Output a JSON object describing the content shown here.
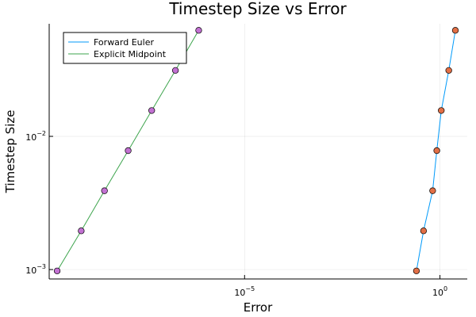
{
  "chart_data": {
    "type": "line",
    "title": "Timestep Size vs Error",
    "xlabel": "Error",
    "ylabel": "Timestep Size",
    "xscale": "log10",
    "yscale": "log10",
    "xlim": [
      1e-10,
      5.0
    ],
    "ylim": [
      0.00085,
      0.07
    ],
    "grid": true,
    "legend": "top-left",
    "x_ticks": [
      {
        "value": 1e-05,
        "base": "10",
        "exp": "−5"
      },
      {
        "value": 1.0,
        "base": "10",
        "exp": "0"
      }
    ],
    "y_ticks": [
      {
        "value": 0.001,
        "base": "10",
        "exp": "−3"
      },
      {
        "value": 0.01,
        "base": "10",
        "exp": "−2"
      }
    ],
    "series": [
      {
        "name": "Forward Euler",
        "line_color": "#009AFA",
        "marker_color": "#E26F46",
        "points": [
          {
            "x": 0.25,
            "y": 0.0009765625
          },
          {
            "x": 0.38,
            "y": 0.001953125
          },
          {
            "x": 0.65,
            "y": 0.00390625
          },
          {
            "x": 0.83,
            "y": 0.0078125
          },
          {
            "x": 1.08,
            "y": 0.015625
          },
          {
            "x": 1.68,
            "y": 0.03125
          },
          {
            "x": 2.48,
            "y": 0.0625
          }
        ]
      },
      {
        "name": "Explicit Midpoint",
        "line_color": "#3DA44D",
        "marker_color": "#C271D2",
        "points": [
          {
            "x": 1.6e-10,
            "y": 0.0009765625
          },
          {
            "x": 6.6e-10,
            "y": 0.001953125
          },
          {
            "x": 2.6e-09,
            "y": 0.00390625
          },
          {
            "x": 1.05e-08,
            "y": 0.0078125
          },
          {
            "x": 4.2e-08,
            "y": 0.015625
          },
          {
            "x": 1.7e-07,
            "y": 0.03125
          },
          {
            "x": 6.7e-07,
            "y": 0.0625
          }
        ]
      }
    ]
  }
}
